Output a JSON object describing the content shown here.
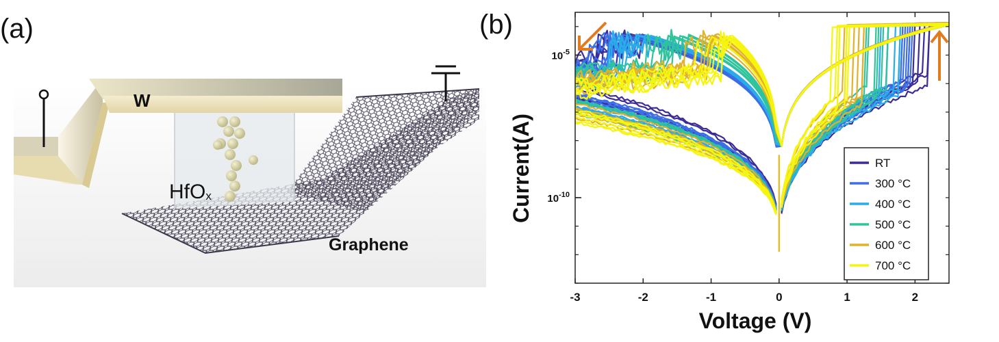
{
  "panels": {
    "a_label": "(a)",
    "b_label": "(b)"
  },
  "schematic": {
    "electrode_label": "W",
    "oxide_label_main": "HfO",
    "oxide_label_sub": "x",
    "substrate_label": "Graphene",
    "colors": {
      "electrode": "#ece3c6",
      "electrode_dark": "#c9bb8f",
      "graphene": "#4a4458",
      "ions": "#ddd9ad",
      "oxide": "#e8ecef"
    }
  },
  "chart_data": {
    "type": "line",
    "title": "",
    "xlabel": "Voltage (V)",
    "ylabel": "Current(A)",
    "xlim": [
      -3,
      2.5
    ],
    "ylim_log10": [
      -13,
      -3.5
    ],
    "yscale": "log",
    "x_ticks": [
      -3,
      -2,
      -1,
      0,
      1,
      2
    ],
    "x_tick_labels": [
      "-3",
      "-2",
      "-1",
      "0",
      "1",
      "2"
    ],
    "y_tick_labels": [
      {
        "base": "10",
        "exp": "-5",
        "log10": -5
      },
      {
        "base": "10",
        "exp": "-10",
        "log10": -10
      }
    ],
    "legend_position": "bottom-right",
    "arrows": {
      "color": "#e07b20",
      "left": "down-left",
      "right": "up"
    },
    "series": [
      {
        "name": "RT",
        "color": "#3b2c97",
        "set_v": 2.05,
        "reset_v": -2.5,
        "hrs_log": -6.5
      },
      {
        "name": "300 °C",
        "color": "#3c6ee8",
        "set_v": 1.85,
        "reset_v": -2.65,
        "hrs_log": -6.6
      },
      {
        "name": "400 °C",
        "color": "#29ace8",
        "set_v": 1.65,
        "reset_v": -2.3,
        "hrs_log": -6.8
      },
      {
        "name": "500 °C",
        "color": "#2fc39c",
        "set_v": 1.45,
        "reset_v": -1.75,
        "hrs_log": -7.0
      },
      {
        "name": "600 °C",
        "color": "#e2b02a",
        "set_v": 1.1,
        "reset_v": -1.25,
        "hrs_log": -7.2
      },
      {
        "name": "700 °C",
        "color": "#f5f50f",
        "set_v": 0.95,
        "reset_v": -1.05,
        "hrs_log": -7.4
      }
    ],
    "lrs_log": -3.9,
    "dip_log": -11.9
  }
}
